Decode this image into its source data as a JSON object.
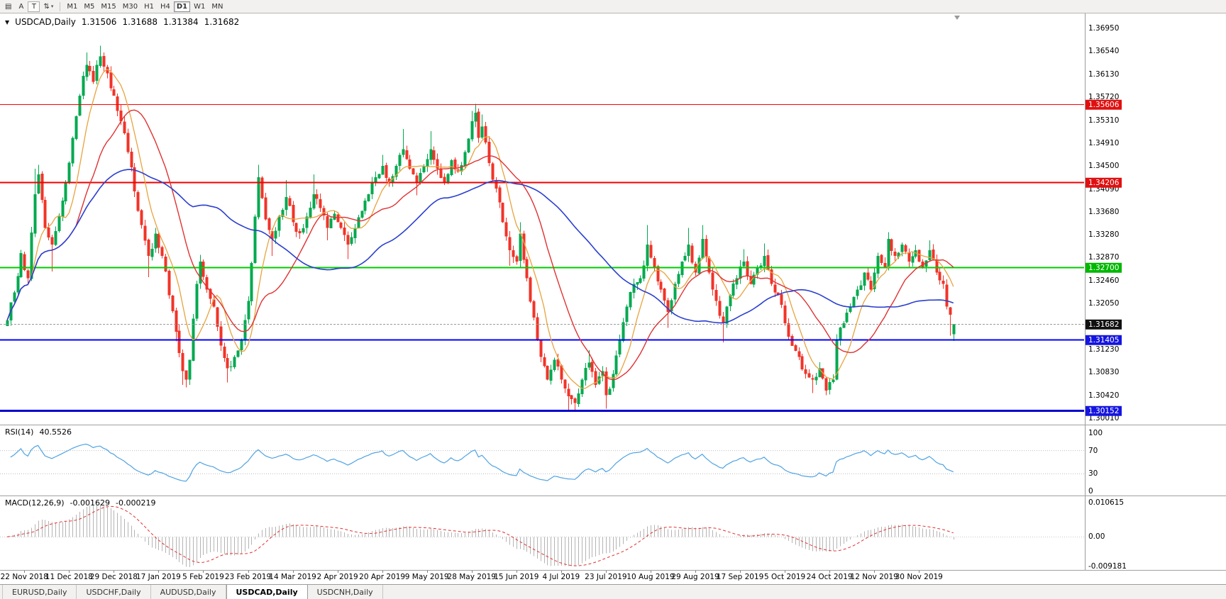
{
  "toolbar": {
    "tool_buttons": [
      {
        "name": "charts-grid",
        "glyph": "▤",
        "framed": false
      },
      {
        "name": "annotation-a",
        "glyph": "A",
        "framed": false
      },
      {
        "name": "text-tool",
        "glyph": "T",
        "framed": true
      },
      {
        "name": "scale-mode",
        "glyph": "⇅",
        "caret": "▾",
        "framed": false
      }
    ],
    "timeframes": [
      "M1",
      "M5",
      "M15",
      "M30",
      "H1",
      "H4",
      "D1",
      "W1",
      "MN"
    ],
    "active_timeframe": "D1"
  },
  "chart_data": {
    "type": "candlestick",
    "symbol_period": "USDCAD,Daily",
    "ohlc": {
      "open": "1.31506",
      "high": "1.31688",
      "low": "1.31384",
      "close": "1.31682"
    },
    "price_axis": {
      "ticks": [
        "1.36950",
        "1.36540",
        "1.36130",
        "1.35720",
        "1.35310",
        "1.34910",
        "1.34500",
        "1.34090",
        "1.33680",
        "1.33280",
        "1.32870",
        "1.32460",
        "1.32050",
        "1.31640",
        "1.31230",
        "1.30830",
        "1.30420",
        "1.30010"
      ]
    },
    "date_axis": {
      "labels": [
        "22 Nov 2018",
        "11 Dec 2018",
        "29 Dec 2018",
        "17 Jan 2019",
        "5 Feb 2019",
        "23 Feb 2019",
        "14 Mar 2019",
        "2 Apr 2019",
        "20 Apr 2019",
        "9 May 2019",
        "28 May 2019",
        "15 Jun 2019",
        "4 Jul 2019",
        "23 Jul 2019",
        "10 Aug 2019",
        "29 Aug 2019",
        "17 Sep 2019",
        "5 Oct 2019",
        "24 Oct 2019",
        "12 Nov 2019",
        "30 Nov 2019"
      ],
      "first_candle_index": 5,
      "candle_step": 13
    },
    "levels": [
      {
        "price": 1.35606,
        "label": "1.35606",
        "color": "#FF0000",
        "badge_color": "#E01010",
        "width": 1
      },
      {
        "price": 1.34206,
        "label": "1.34206",
        "color": "#F00000",
        "badge_color": "#E01010",
        "width": 2
      },
      {
        "price": 1.327,
        "label": "1.32700",
        "color": "#00CC00",
        "badge_color": "#00B800",
        "width": 2
      },
      {
        "price": 1.31405,
        "label": "1.31405",
        "color": "#0000FF",
        "badge_color": "#1515E0",
        "width": 2
      },
      {
        "price": 1.30152,
        "label": "1.30152",
        "color": "#0000CC",
        "badge_color": "#1515E0",
        "width": 3
      }
    ],
    "price_line": {
      "price": 1.31682,
      "label": "1.31682",
      "badge_color": "#111111"
    },
    "candles": {
      "count": 276,
      "up_color": "#00A94F",
      "down_color": "#F23328",
      "last": {
        "open": 1.31506,
        "high": 1.31688,
        "low": 1.31384,
        "close": 1.31682
      },
      "waypoints": [
        [
          0,
          1.3175
        ],
        [
          2,
          1.3225
        ],
        [
          4,
          1.3295
        ],
        [
          6,
          1.325
        ],
        [
          8,
          1.34,
          1.3445
        ],
        [
          9,
          1.3435,
          1.3452
        ],
        [
          11,
          1.334
        ],
        [
          13,
          1.331,
          null,
          1.3262
        ],
        [
          15,
          1.336
        ],
        [
          17,
          1.342
        ],
        [
          19,
          1.35
        ],
        [
          21,
          1.3575
        ],
        [
          23,
          1.363,
          1.3652
        ],
        [
          25,
          1.36
        ],
        [
          27,
          1.3645,
          1.3664
        ],
        [
          29,
          1.3615
        ],
        [
          31,
          1.3575
        ],
        [
          33,
          1.353
        ],
        [
          35,
          1.3475
        ],
        [
          37,
          1.3405
        ],
        [
          39,
          1.3345
        ],
        [
          41,
          1.329,
          null,
          1.3252
        ],
        [
          43,
          1.333
        ],
        [
          45,
          1.329
        ],
        [
          47,
          1.322
        ],
        [
          49,
          1.3155,
          null,
          1.3138
        ],
        [
          51,
          1.3085,
          null,
          1.306
        ],
        [
          52,
          1.307,
          null,
          1.3056
        ],
        [
          53,
          1.3105
        ],
        [
          55,
          1.324
        ],
        [
          56,
          1.328,
          1.3292
        ],
        [
          58,
          1.323
        ],
        [
          60,
          1.32
        ],
        [
          62,
          1.313
        ],
        [
          64,
          1.309,
          null,
          1.3065
        ],
        [
          66,
          1.311
        ],
        [
          68,
          1.314
        ],
        [
          70,
          1.321
        ],
        [
          72,
          1.336
        ],
        [
          73,
          1.343,
          1.3452
        ],
        [
          75,
          1.3355
        ],
        [
          77,
          1.332,
          null,
          1.329
        ],
        [
          79,
          1.336
        ],
        [
          81,
          1.3395,
          1.3425
        ],
        [
          83,
          1.335
        ],
        [
          85,
          1.333
        ],
        [
          87,
          1.336
        ],
        [
          89,
          1.34,
          1.3435
        ],
        [
          91,
          1.3375
        ],
        [
          93,
          1.334,
          null,
          1.3318
        ],
        [
          95,
          1.3365
        ],
        [
          97,
          1.334
        ],
        [
          99,
          1.331,
          null,
          1.3284
        ],
        [
          101,
          1.334
        ],
        [
          103,
          1.337
        ],
        [
          105,
          1.34
        ],
        [
          107,
          1.343
        ],
        [
          109,
          1.345,
          1.347
        ],
        [
          111,
          1.342
        ],
        [
          113,
          1.345
        ],
        [
          115,
          1.348,
          1.3516
        ],
        [
          117,
          1.3445
        ],
        [
          119,
          1.342,
          null,
          1.3398
        ],
        [
          121,
          1.345
        ],
        [
          123,
          1.348,
          1.3512
        ],
        [
          125,
          1.3445
        ],
        [
          127,
          1.342
        ],
        [
          129,
          1.346
        ],
        [
          131,
          1.344
        ],
        [
          133,
          1.3475
        ],
        [
          135,
          1.353,
          1.3548
        ],
        [
          136,
          1.3545,
          1.35606
        ],
        [
          137,
          1.35
        ],
        [
          138,
          1.352,
          1.3542
        ],
        [
          140,
          1.3455
        ],
        [
          142,
          1.341
        ],
        [
          144,
          1.335
        ],
        [
          146,
          1.33,
          null,
          1.3272
        ],
        [
          148,
          1.328
        ],
        [
          149,
          1.333,
          1.335
        ],
        [
          151,
          1.325
        ],
        [
          153,
          1.318
        ],
        [
          155,
          1.311
        ],
        [
          157,
          1.307
        ],
        [
          159,
          1.3105
        ],
        [
          161,
          1.307
        ],
        [
          163,
          1.304,
          null,
          1.3016
        ],
        [
          165,
          1.3028,
          null,
          1.30152
        ],
        [
          167,
          1.307
        ],
        [
          169,
          1.31,
          1.3122
        ],
        [
          171,
          1.306
        ],
        [
          173,
          1.3085
        ],
        [
          174,
          1.3042,
          null,
          1.3018
        ],
        [
          176,
          1.308
        ],
        [
          178,
          1.314
        ],
        [
          180,
          1.32
        ],
        [
          182,
          1.324
        ],
        [
          184,
          1.325
        ],
        [
          186,
          1.331,
          1.3345
        ],
        [
          188,
          1.327
        ],
        [
          190,
          1.323
        ],
        [
          192,
          1.319,
          null,
          1.3162
        ],
        [
          194,
          1.324
        ],
        [
          196,
          1.328
        ],
        [
          198,
          1.331,
          1.334
        ],
        [
          200,
          1.326
        ],
        [
          202,
          1.332,
          1.3345
        ],
        [
          204,
          1.326
        ],
        [
          206,
          1.321
        ],
        [
          208,
          1.317,
          null,
          1.3136
        ],
        [
          210,
          1.322
        ],
        [
          212,
          1.325
        ],
        [
          214,
          1.328,
          1.3302
        ],
        [
          216,
          1.324
        ],
        [
          218,
          1.327
        ],
        [
          220,
          1.329,
          1.3312
        ],
        [
          222,
          1.324
        ],
        [
          224,
          1.322
        ],
        [
          226,
          1.317
        ],
        [
          228,
          1.313
        ],
        [
          230,
          1.311
        ],
        [
          232,
          1.308
        ],
        [
          234,
          1.307,
          null,
          1.3046
        ],
        [
          236,
          1.309
        ],
        [
          238,
          1.305,
          null,
          1.3042
        ],
        [
          240,
          1.307
        ],
        [
          241,
          1.314
        ],
        [
          243,
          1.317
        ],
        [
          245,
          1.32
        ],
        [
          247,
          1.323
        ],
        [
          249,
          1.326
        ],
        [
          251,
          1.323
        ],
        [
          253,
          1.329
        ],
        [
          255,
          1.327
        ],
        [
          256,
          1.332,
          1.3332
        ],
        [
          258,
          1.329
        ],
        [
          260,
          1.331
        ],
        [
          262,
          1.328
        ],
        [
          264,
          1.33
        ],
        [
          265,
          1.328
        ],
        [
          266,
          1.327
        ],
        [
          268,
          1.33,
          1.3318
        ],
        [
          270,
          1.326
        ],
        [
          272,
          1.324
        ],
        [
          273,
          1.32
        ],
        [
          274,
          1.3185,
          null,
          1.3148
        ],
        [
          275,
          1.31682
        ]
      ]
    },
    "moving_averages": [
      {
        "period": 8,
        "color": "#E8A33D"
      },
      {
        "period": 21,
        "color": "#E03131"
      },
      {
        "period": 55,
        "color": "#2B3FD0"
      }
    ],
    "rsi": {
      "label": "RSI(14)",
      "value": "40.5526",
      "period": 14,
      "color": "#4FA3E3",
      "levels": [
        70,
        30
      ],
      "axis_labels": [
        "100",
        "70",
        "30",
        "0"
      ],
      "range": [
        0,
        100
      ]
    },
    "macd": {
      "label": "MACD(12,26,9)",
      "value_main": "-0.001629",
      "value_signal": "-0.000219",
      "fast": 12,
      "slow": 26,
      "signal": 9,
      "bar_color": "#B4B4B4",
      "signal_color": "#E03131",
      "axis_labels": [
        "0.010615",
        "0.00",
        "-0.009181"
      ],
      "range": [
        -0.009181,
        0.010615
      ]
    }
  },
  "tabs": [
    {
      "label": "EURUSD,Daily",
      "active": false
    },
    {
      "label": "USDCHF,Daily",
      "active": false
    },
    {
      "label": "AUDUSD,Daily",
      "active": false
    },
    {
      "label": "USDCAD,Daily",
      "active": true
    },
    {
      "label": "USDCNH,Daily",
      "active": false
    }
  ]
}
